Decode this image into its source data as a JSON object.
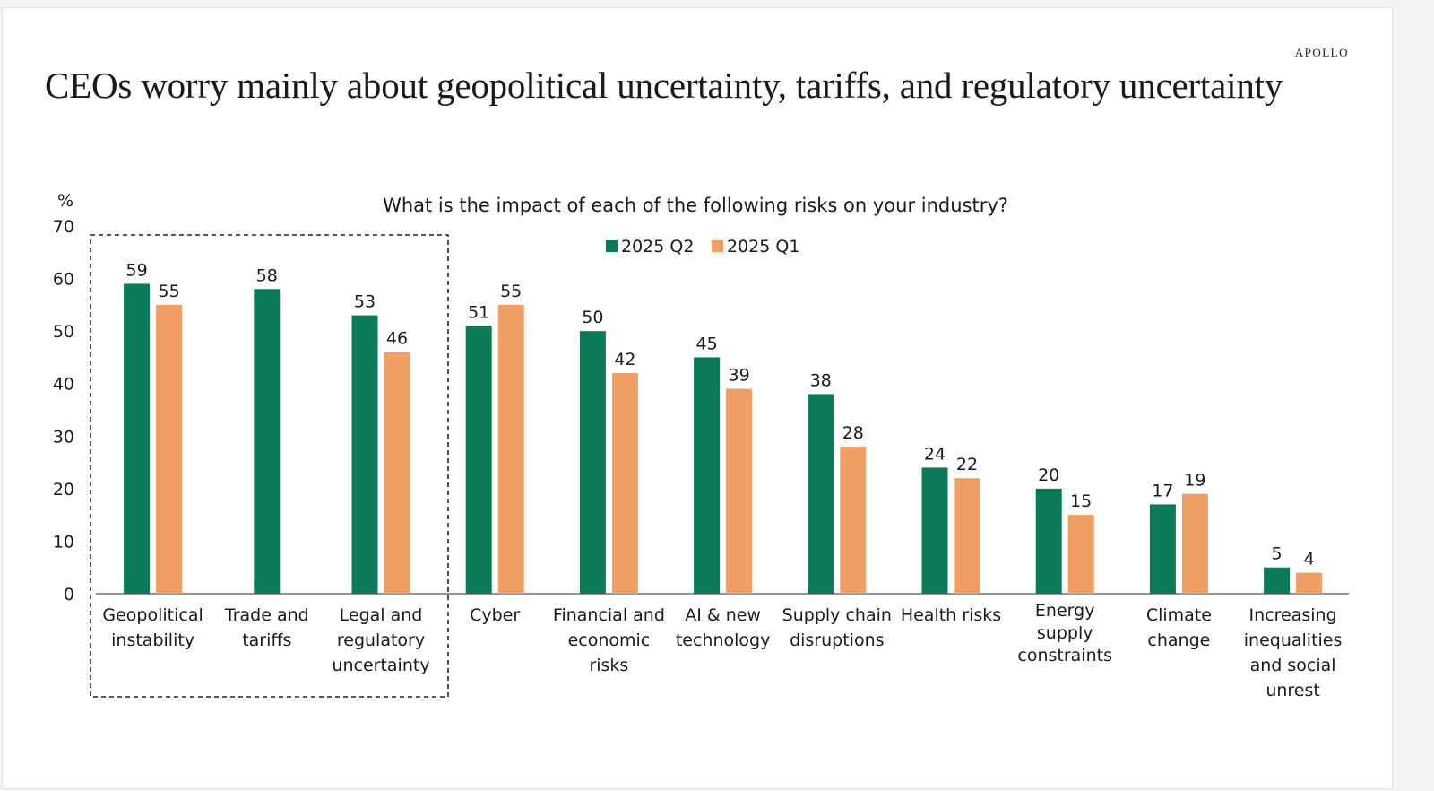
{
  "brand": "APOLLO",
  "headline": "CEOs worry mainly about geopolitical uncertainty, tariffs, and regulatory uncertainty",
  "colors": {
    "q2": "#0b7a5a",
    "q1": "#ef9e64",
    "axis": "#555555",
    "text": "#1a1a1a"
  },
  "chart_data": {
    "type": "bar",
    "title": "What is the impact of each of the following risks on your industry?",
    "ylabel": "%",
    "ylim": [
      0,
      70
    ],
    "yticks": [
      0,
      10,
      20,
      30,
      40,
      50,
      60,
      70
    ],
    "grid": false,
    "legend_position": "top-center",
    "categories": [
      [
        "Geopolitical",
        "instability"
      ],
      [
        "Trade and",
        "tariffs"
      ],
      [
        "Legal and",
        "regulatory",
        "uncertainty"
      ],
      [
        "Cyber"
      ],
      [
        "Financial and",
        "economic",
        "risks"
      ],
      [
        "AI & new",
        "technology"
      ],
      [
        "Supply chain",
        "disruptions"
      ],
      [
        "Health risks"
      ],
      [
        "Energy",
        "supply",
        "constraints"
      ],
      [
        "Climate",
        "change"
      ],
      [
        "Increasing",
        "inequalities",
        "and social",
        "unrest"
      ]
    ],
    "series": [
      {
        "name": "2025 Q2",
        "values": [
          59,
          58,
          53,
          51,
          50,
          45,
          38,
          24,
          20,
          17,
          5
        ]
      },
      {
        "name": "2025 Q1",
        "values": [
          55,
          null,
          46,
          55,
          42,
          39,
          28,
          22,
          15,
          19,
          4
        ]
      }
    ],
    "highlight": {
      "style": "dashed box",
      "categories": [
        "Geopolitical instability",
        "Trade and tariffs",
        "Legal and regulatory uncertainty"
      ]
    }
  }
}
